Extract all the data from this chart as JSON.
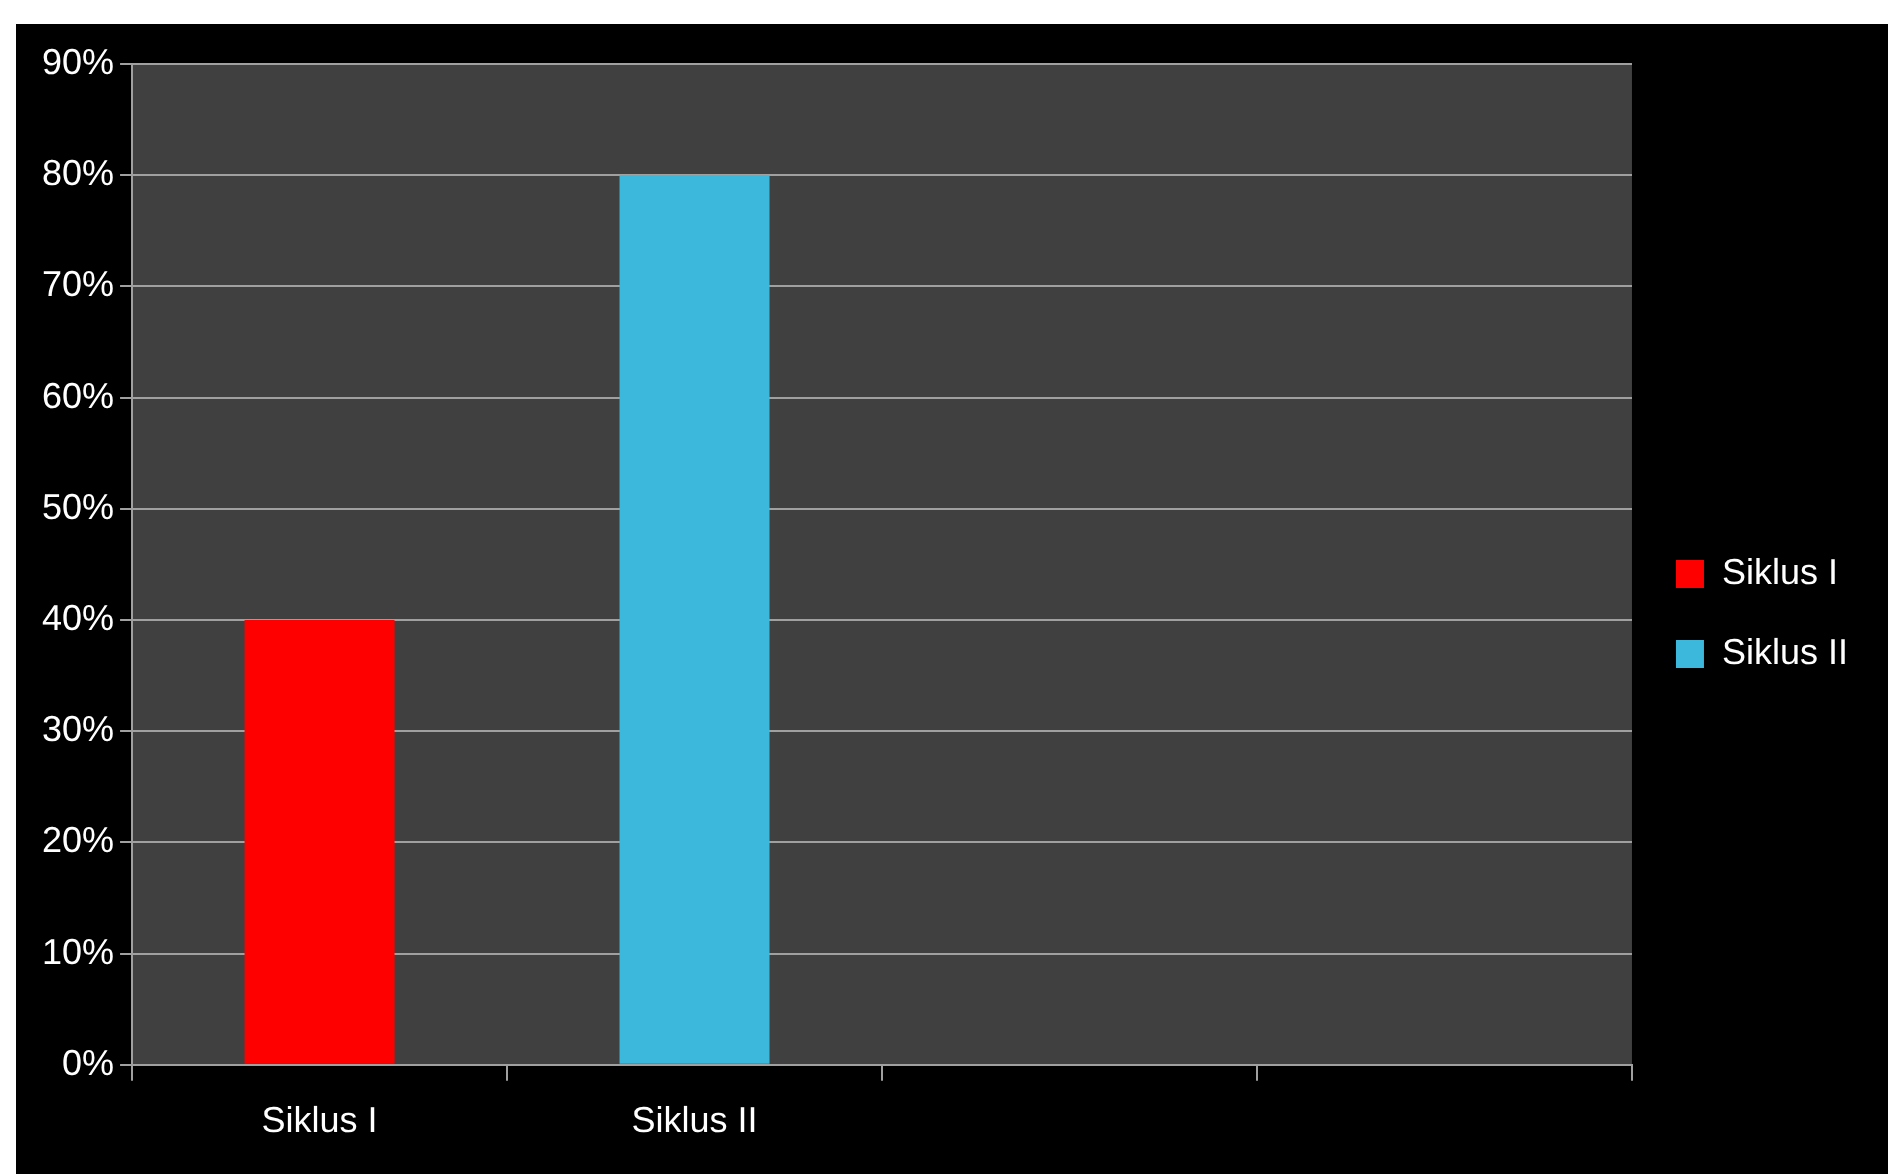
{
  "chart_data": {
    "type": "bar",
    "categories": [
      "Siklus I",
      "Siklus II",
      null,
      null
    ],
    "series": [
      {
        "name": "Siklus I",
        "color": "#ff0000",
        "values": [
          40,
          null,
          null,
          null
        ]
      },
      {
        "name": "Siklus II",
        "color": "#3bb8dc",
        "values": [
          null,
          80,
          null,
          null
        ]
      }
    ],
    "ylim": [
      0,
      90
    ],
    "yticks": [
      {
        "value": 0,
        "label": "0%"
      },
      {
        "value": 10,
        "label": "10%"
      },
      {
        "value": 20,
        "label": "20%"
      },
      {
        "value": 30,
        "label": "30%"
      },
      {
        "value": 40,
        "label": "40%"
      },
      {
        "value": 50,
        "label": "50%"
      },
      {
        "value": 60,
        "label": "60%"
      },
      {
        "value": 70,
        "label": "70%"
      },
      {
        "value": 80,
        "label": "80%"
      },
      {
        "value": 90,
        "label": "90%"
      }
    ],
    "grid": "y",
    "legend": "right"
  }
}
